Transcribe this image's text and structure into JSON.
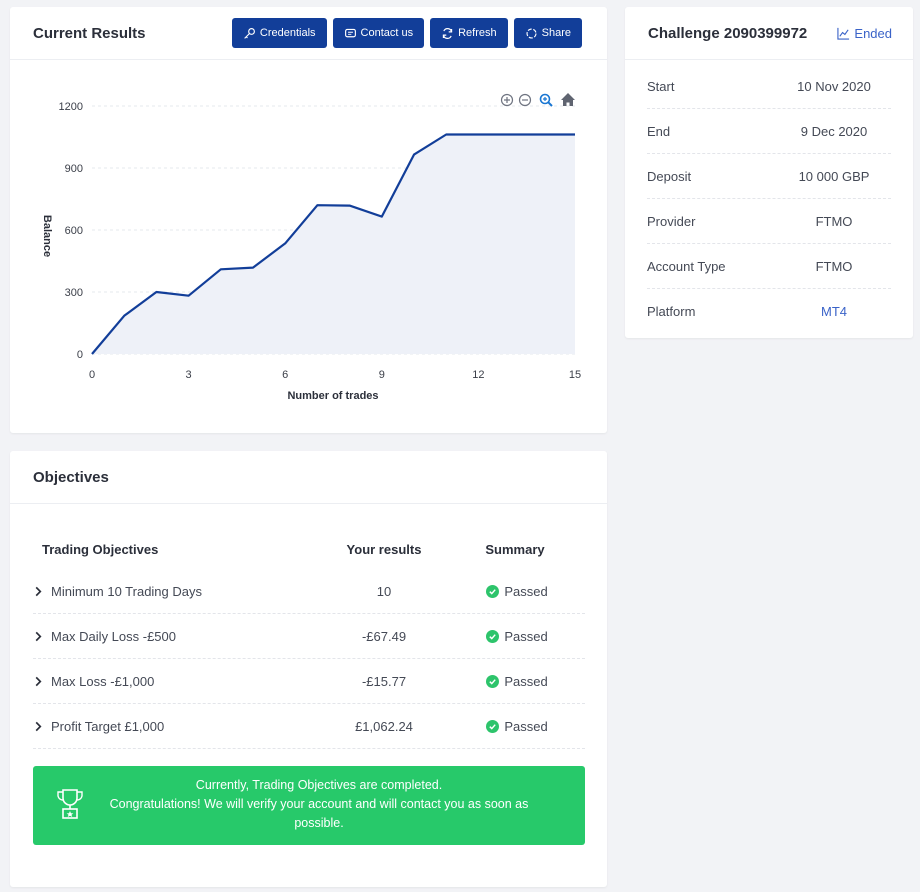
{
  "results": {
    "title": "Current Results",
    "buttons": {
      "credentials": "Credentials",
      "contact": "Contact us",
      "refresh": "Refresh",
      "share": "Share"
    }
  },
  "chart_data": {
    "type": "area",
    "xlabel": "Number of trades",
    "ylabel": "Balance",
    "xlim": [
      0,
      15
    ],
    "ylim": [
      0,
      1200
    ],
    "xticks": [
      0,
      3,
      6,
      9,
      12,
      15
    ],
    "yticks": [
      0,
      300,
      600,
      900,
      1200
    ],
    "x": [
      0,
      1,
      2,
      3,
      4,
      5,
      6,
      7,
      8,
      9,
      10,
      11,
      12,
      13,
      14,
      15
    ],
    "y": [
      0,
      185,
      300,
      282,
      410,
      418,
      535,
      720,
      718,
      665,
      965,
      1062,
      1062,
      1062,
      1062,
      1062
    ],
    "grid": true,
    "line_color": "#123e99",
    "fill_color": "#eef1f8"
  },
  "objectives": {
    "title": "Objectives",
    "headers": {
      "objective": "Trading Objectives",
      "result": "Your results",
      "summary": "Summary"
    },
    "rows": [
      {
        "objective": "Minimum 10 Trading Days",
        "result": "10",
        "summary": "Passed"
      },
      {
        "objective": "Max Daily Loss -£500",
        "result": "-£67.49",
        "summary": "Passed"
      },
      {
        "objective": "Max Loss -£1,000",
        "result": "-£15.77",
        "summary": "Passed"
      },
      {
        "objective": "Profit Target £1,000",
        "result": "£1,062.24",
        "summary": "Passed"
      }
    ],
    "banner_line1": "Currently, Trading Objectives are completed.",
    "banner_line2": "Congratulations! We will verify your account and will contact you as soon as possible."
  },
  "challenge": {
    "title": "Challenge 2090399972",
    "status": "Ended",
    "items": [
      {
        "label": "Start",
        "value": "10 Nov 2020"
      },
      {
        "label": "End",
        "value": "9 Dec 2020"
      },
      {
        "label": "Deposit",
        "value": "10 000 GBP"
      },
      {
        "label": "Provider",
        "value": "FTMO"
      },
      {
        "label": "Account Type",
        "value": "FTMO"
      },
      {
        "label": "Platform",
        "value": "MT4"
      }
    ]
  },
  "colors": {
    "primary": "#123e99",
    "success": "#27c96a",
    "link": "#3a63c8"
  }
}
